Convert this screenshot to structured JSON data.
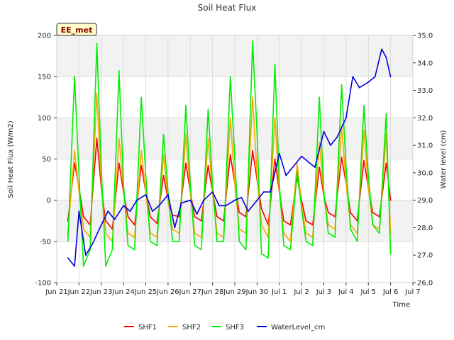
{
  "chart_data": {
    "type": "line",
    "title": "Soil Heat Flux",
    "xlabel": "Time",
    "ylabel": "Soil Heat Flux (W/m2)",
    "y2label": "Water level (cm)",
    "badge": "EE_met",
    "ylim": [
      -100,
      200
    ],
    "y2lim": [
      26.0,
      35.0
    ],
    "xlim": [
      0,
      16
    ],
    "yticks": [
      -100,
      -50,
      0,
      50,
      100,
      150,
      200
    ],
    "y2ticks": [
      26.0,
      27.0,
      28.0,
      29.0,
      30.0,
      31.0,
      32.0,
      33.0,
      34.0,
      35.0
    ],
    "y2tick_labels": [
      "26.0",
      "27.0",
      "28.0",
      "29.0",
      "30.0",
      "31.0",
      "32.0",
      "33.0",
      "34.0",
      "35.0"
    ],
    "xticks": [
      0,
      1,
      2,
      3,
      4,
      5,
      6,
      7,
      8,
      9,
      10,
      11,
      12,
      13,
      14,
      15,
      16
    ],
    "xtick_labels": [
      "Jun 21",
      "Jun 22",
      "Jun 23",
      "Jun 24",
      "Jun 25",
      "Jun 26",
      "Jun 27",
      "Jun 28",
      "Jun 29",
      "Jun 30",
      "Jul 1",
      "Jul 2",
      "Jul 3",
      "Jul 4",
      "Jul 5",
      "Jul 6",
      "Jul 7"
    ],
    "grid": true,
    "legend_position": "bottom-center",
    "series": [
      {
        "name": "SHF1",
        "color": "#ff0000",
        "axis": "left",
        "x": [
          0.5,
          0.8,
          1.0,
          1.2,
          1.5,
          1.8,
          2.0,
          2.2,
          2.5,
          2.8,
          3.0,
          3.2,
          3.5,
          3.8,
          4.0,
          4.2,
          4.5,
          4.8,
          5.0,
          5.2,
          5.5,
          5.8,
          6.0,
          6.2,
          6.5,
          6.8,
          7.0,
          7.2,
          7.5,
          7.8,
          8.0,
          8.2,
          8.5,
          8.8,
          9.0,
          9.2,
          9.5,
          9.8,
          10.0,
          10.2,
          10.5,
          10.8,
          11.0,
          11.2,
          11.5,
          11.8,
          12.0,
          12.2,
          12.5,
          12.8,
          13.0,
          13.2,
          13.5,
          13.8,
          14.0,
          14.2,
          14.5,
          14.8,
          15.0
        ],
        "values": [
          -25,
          45,
          15,
          -20,
          -30,
          75,
          15,
          -25,
          -35,
          45,
          10,
          -20,
          -30,
          42,
          10,
          -20,
          -28,
          30,
          0,
          -18,
          -20,
          45,
          10,
          -20,
          -25,
          42,
          10,
          -20,
          -25,
          55,
          20,
          -15,
          -20,
          60,
          25,
          -10,
          -30,
          50,
          10,
          -25,
          -30,
          28,
          0,
          -25,
          -30,
          40,
          5,
          -15,
          -20,
          52,
          20,
          -15,
          -25,
          48,
          15,
          -15,
          -20,
          45,
          0
        ]
      },
      {
        "name": "SHF2",
        "color": "#ffa500",
        "axis": "left",
        "x": [
          0.5,
          0.8,
          1.0,
          1.2,
          1.5,
          1.8,
          2.0,
          2.2,
          2.5,
          2.8,
          3.0,
          3.2,
          3.5,
          3.8,
          4.0,
          4.2,
          4.5,
          4.8,
          5.0,
          5.2,
          5.5,
          5.8,
          6.0,
          6.2,
          6.5,
          6.8,
          7.0,
          7.2,
          7.5,
          7.8,
          8.0,
          8.2,
          8.5,
          8.8,
          9.0,
          9.2,
          9.5,
          9.8,
          10.0,
          10.2,
          10.5,
          10.8,
          11.0,
          11.2,
          11.5,
          11.8,
          12.0,
          12.2,
          12.5,
          12.8,
          13.0,
          13.2,
          13.5,
          13.8,
          14.0,
          14.2,
          14.5,
          14.8,
          15.0
        ],
        "values": [
          -40,
          60,
          10,
          -35,
          -45,
          130,
          20,
          -40,
          -50,
          75,
          15,
          -40,
          -45,
          60,
          10,
          -40,
          -45,
          55,
          0,
          -35,
          -40,
          80,
          10,
          -40,
          -45,
          75,
          10,
          -40,
          -45,
          100,
          20,
          -35,
          -40,
          125,
          30,
          -30,
          -45,
          100,
          10,
          -40,
          -50,
          45,
          -5,
          -40,
          -45,
          70,
          5,
          -30,
          -35,
          90,
          20,
          -30,
          -40,
          85,
          15,
          -30,
          -35,
          80,
          -40
        ]
      },
      {
        "name": "SHF3",
        "color": "#00ee00",
        "axis": "left",
        "x": [
          0.5,
          0.8,
          1.0,
          1.2,
          1.5,
          1.8,
          2.0,
          2.2,
          2.5,
          2.8,
          3.0,
          3.2,
          3.5,
          3.8,
          4.0,
          4.2,
          4.5,
          4.8,
          5.0,
          5.2,
          5.5,
          5.8,
          6.0,
          6.2,
          6.5,
          6.8,
          7.0,
          7.2,
          7.5,
          7.8,
          8.0,
          8.2,
          8.5,
          8.8,
          9.0,
          9.2,
          9.5,
          9.8,
          10.0,
          10.2,
          10.5,
          10.8,
          11.0,
          11.2,
          11.5,
          11.8,
          12.0,
          12.2,
          12.5,
          12.8,
          13.0,
          13.2,
          13.5,
          13.8,
          14.0,
          14.2,
          14.5,
          14.8,
          15.0
        ],
        "values": [
          -50,
          150,
          30,
          -80,
          -60,
          190,
          40,
          -80,
          -60,
          157,
          20,
          -55,
          -60,
          125,
          30,
          -50,
          -55,
          80,
          10,
          -50,
          -50,
          115,
          20,
          -55,
          -60,
          110,
          20,
          -50,
          -50,
          150,
          50,
          -50,
          -60,
          193,
          80,
          -65,
          -70,
          165,
          20,
          -55,
          -60,
          35,
          -10,
          -50,
          -55,
          125,
          10,
          -40,
          -45,
          140,
          40,
          -35,
          -50,
          115,
          30,
          -30,
          -40,
          105,
          -65
        ]
      },
      {
        "name": "WaterLevel_cm",
        "color": "#0000dd",
        "axis": "right",
        "x": [
          0.5,
          0.8,
          1.0,
          1.3,
          1.6,
          2.0,
          2.3,
          2.6,
          3.0,
          3.3,
          3.6,
          4.0,
          4.3,
          4.6,
          5.0,
          5.3,
          5.6,
          6.0,
          6.3,
          6.6,
          7.0,
          7.3,
          7.6,
          8.0,
          8.3,
          8.6,
          9.0,
          9.3,
          9.6,
          10.0,
          10.3,
          10.6,
          11.0,
          11.3,
          11.6,
          12.0,
          12.3,
          12.6,
          13.0,
          13.3,
          13.6,
          14.0,
          14.3,
          14.6,
          14.8,
          15.0
        ],
        "values": [
          26.9,
          26.6,
          28.6,
          27.0,
          27.4,
          28.1,
          28.6,
          28.3,
          28.8,
          28.6,
          29.0,
          29.2,
          28.6,
          28.8,
          29.2,
          28.0,
          28.9,
          29.0,
          28.5,
          29.0,
          29.3,
          28.8,
          28.8,
          29.0,
          29.1,
          28.6,
          29.0,
          29.3,
          29.3,
          30.7,
          29.9,
          30.2,
          30.6,
          30.4,
          30.2,
          31.5,
          31.0,
          31.3,
          32.0,
          33.5,
          33.1,
          33.3,
          33.5,
          34.5,
          34.2,
          33.5
        ]
      }
    ]
  }
}
